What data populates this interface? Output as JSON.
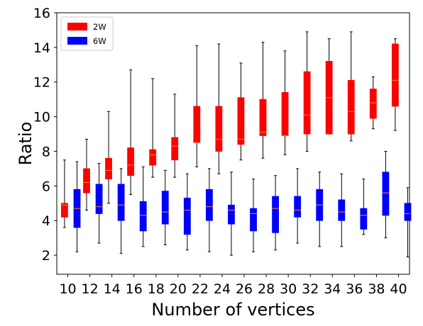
{
  "chart_data": {
    "type": "boxplot",
    "xlabel": "Number of vertices",
    "ylabel": "Ratio",
    "ylim": [
      0.9,
      16
    ],
    "yticks": [
      2,
      4,
      6,
      8,
      10,
      12,
      14,
      16
    ],
    "categories": [
      "10",
      "12",
      "14",
      "16",
      "18",
      "20",
      "22",
      "24",
      "26",
      "28",
      "30",
      "32",
      "34",
      "36",
      "38",
      "40"
    ],
    "legend_position": "top-left",
    "series": [
      {
        "name": "2W",
        "color": "#ff0000",
        "median_color": "#ff8c00",
        "boxes": [
          {
            "whislo": 3.6,
            "q1": 4.2,
            "med": 4.9,
            "q3": 5.0,
            "whishi": 7.5
          },
          {
            "whislo": 4.6,
            "q1": 5.6,
            "med": 6.2,
            "q3": 7.0,
            "whishi": 8.7
          },
          {
            "whislo": 5.0,
            "q1": 6.4,
            "med": 6.9,
            "q3": 7.6,
            "whishi": 10.3
          },
          {
            "whislo": 5.5,
            "q1": 6.6,
            "med": 7.2,
            "q3": 8.2,
            "whishi": 12.7
          },
          {
            "whislo": 6.5,
            "q1": 7.2,
            "med": 7.8,
            "q3": 8.1,
            "whishi": 12.2
          },
          {
            "whislo": 6.5,
            "q1": 7.5,
            "med": 8.3,
            "q3": 8.8,
            "whishi": 11.3
          },
          {
            "whislo": 7.1,
            "q1": 8.5,
            "med": 8.5,
            "q3": 10.6,
            "whishi": 14.1
          },
          {
            "whislo": 6.7,
            "q1": 8.0,
            "med": 8.7,
            "q3": 10.6,
            "whishi": 14.2
          },
          {
            "whislo": 7.5,
            "q1": 8.4,
            "med": 8.7,
            "q3": 11.1,
            "whishi": 13.1
          },
          {
            "whislo": 7.6,
            "q1": 8.9,
            "med": 9.1,
            "q3": 11.0,
            "whishi": 14.3
          },
          {
            "whislo": 7.8,
            "q1": 8.9,
            "med": 8.9,
            "q3": 11.4,
            "whishi": 13.8
          },
          {
            "whislo": 8.0,
            "q1": 9.0,
            "med": 10.1,
            "q3": 12.6,
            "whishi": 14.9
          },
          {
            "whislo": 9.0,
            "q1": 9.0,
            "med": 11.1,
            "q3": 13.2,
            "whishi": 14.5
          },
          {
            "whislo": 8.6,
            "q1": 9.0,
            "med": 10.3,
            "q3": 12.1,
            "whishi": 14.9
          },
          {
            "whislo": 9.3,
            "q1": 9.9,
            "med": 10.8,
            "q3": 11.6,
            "whishi": 12.3
          },
          {
            "whislo": 9.2,
            "q1": 10.6,
            "med": 12.1,
            "q3": 14.2,
            "whishi": 14.5
          }
        ]
      },
      {
        "name": "6W",
        "color": "#0000ff",
        "median_color": "#ff8c00",
        "boxes": [
          {
            "whislo": 2.2,
            "q1": 3.6,
            "med": 4.7,
            "q3": 5.8,
            "whishi": 7.4
          },
          {
            "whislo": 2.7,
            "q1": 4.4,
            "med": 4.8,
            "q3": 6.1,
            "whishi": 7.3
          },
          {
            "whislo": 2.1,
            "q1": 4.0,
            "med": 4.9,
            "q3": 6.1,
            "whishi": 7.0
          },
          {
            "whislo": 2.5,
            "q1": 3.4,
            "med": 4.3,
            "q3": 5.1,
            "whishi": 7.1
          },
          {
            "whislo": 2.6,
            "q1": 3.8,
            "med": 4.5,
            "q3": 5.7,
            "whishi": 6.9
          },
          {
            "whislo": 2.3,
            "q1": 3.2,
            "med": 4.6,
            "q3": 5.3,
            "whishi": 6.7
          },
          {
            "whislo": 2.2,
            "q1": 4.0,
            "med": 4.8,
            "q3": 5.8,
            "whishi": 7.0
          },
          {
            "whislo": 2.0,
            "q1": 3.8,
            "med": 4.6,
            "q3": 4.9,
            "whishi": 6.8
          },
          {
            "whislo": 2.2,
            "q1": 3.4,
            "med": 4.4,
            "q3": 4.7,
            "whishi": 6.4
          },
          {
            "whislo": 2.3,
            "q1": 3.3,
            "med": 4.7,
            "q3": 5.4,
            "whishi": 6.6
          },
          {
            "whislo": 2.7,
            "q1": 4.2,
            "med": 4.6,
            "q3": 5.4,
            "whishi": 7.0
          },
          {
            "whislo": 2.5,
            "q1": 4.0,
            "med": 4.9,
            "q3": 5.8,
            "whishi": 6.8
          },
          {
            "whislo": 2.5,
            "q1": 4.0,
            "med": 4.5,
            "q3": 5.2,
            "whishi": 6.7
          },
          {
            "whislo": 3.2,
            "q1": 3.5,
            "med": 4.3,
            "q3": 4.7,
            "whishi": 6.4
          },
          {
            "whislo": 3.0,
            "q1": 4.3,
            "med": 5.6,
            "q3": 6.8,
            "whishi": 8.0
          },
          {
            "whislo": 1.9,
            "q1": 4.0,
            "med": 4.4,
            "q3": 5.0,
            "whishi": 5.9
          }
        ]
      }
    ]
  }
}
